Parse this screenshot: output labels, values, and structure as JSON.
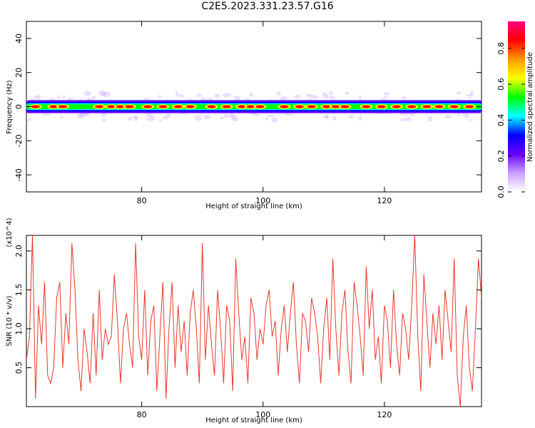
{
  "title": "C2E5.2023.331.23.57.G16",
  "colors": {
    "trace": "#e8382b",
    "axis": "#000000"
  },
  "chart_data": [
    {
      "type": "heatmap",
      "title": "C2E5.2023.331.23.57.G16",
      "xlabel": "Height of straight line (km)",
      "ylabel": "Frequency (Hz)",
      "xlim": [
        61,
        136
      ],
      "ylim": [
        -50,
        50
      ],
      "xticks": [
        80,
        100,
        120
      ],
      "yticks": [
        -40,
        -20,
        0,
        20,
        40
      ],
      "band_center_hz": 0,
      "band_halfwidth_hz": 4,
      "colorbar": {
        "label": "Normalized spectral amplitude",
        "ticks": [
          "0.0",
          "0.2",
          "0.4",
          "0.6",
          "0.8"
        ],
        "range": [
          0,
          0.95
        ],
        "colormap": [
          "#ffffff",
          "#c9a0ff",
          "#6a00ff",
          "#0000ff",
          "#00ffff",
          "#00ff00",
          "#ffff00",
          "#ff9900",
          "#ff0000",
          "#ff007f"
        ]
      },
      "hotspots_km": [
        62.5,
        65.5,
        67,
        73,
        75,
        76.5,
        78,
        81,
        83.5,
        86,
        88,
        91.5,
        94,
        96.5,
        98,
        99.5,
        103.5,
        106,
        108,
        110.5,
        112,
        113.5,
        117,
        119.5,
        122,
        124.5,
        127,
        129,
        131.5,
        134
      ]
    },
    {
      "type": "line",
      "xlabel": "Height of straight line (km)",
      "ylabel": "SNR (10 * v/v)",
      "multiplier": "(x10^4)",
      "xlim": [
        61,
        136
      ],
      "ylim": [
        0,
        2.2
      ],
      "xticks": [
        80,
        100,
        120
      ],
      "yticks": [
        "0.5",
        "1.0",
        "1.5",
        "2.0"
      ],
      "series": [
        {
          "x": [
            61.0,
            61.5,
            62.0,
            62.5,
            63.0,
            63.5,
            64.0,
            64.5,
            65.0,
            65.5,
            66.0,
            66.5,
            67.0,
            67.5,
            68.0,
            68.5,
            69.0,
            69.5,
            70.0,
            70.5,
            71.0,
            71.5,
            72.0,
            72.5,
            73.0,
            73.5,
            74.0,
            74.5,
            75.0,
            75.5,
            76.0,
            76.5,
            77.0,
            77.5,
            78.0,
            78.5,
            79.0,
            79.5,
            80.0,
            80.5,
            81.0,
            81.5,
            82.0,
            82.5,
            83.0,
            83.5,
            84.0,
            84.5,
            85.0,
            85.5,
            86.0,
            86.5,
            87.0,
            87.5,
            88.0,
            88.5,
            89.0,
            89.5,
            90.0,
            90.5,
            91.0,
            91.5,
            92.0,
            92.5,
            93.0,
            93.5,
            94.0,
            94.5,
            95.0,
            95.5,
            96.0,
            96.5,
            97.0,
            97.5,
            98.0,
            98.5,
            99.0,
            99.5,
            100.0,
            100.5,
            101.0,
            101.5,
            102.0,
            102.5,
            103.0,
            103.5,
            104.0,
            104.5,
            105.0,
            105.5,
            106.0,
            106.5,
            107.0,
            107.5,
            108.0,
            108.5,
            109.0,
            109.5,
            110.0,
            110.5,
            111.0,
            111.5,
            112.0,
            112.5,
            113.0,
            113.5,
            114.0,
            114.5,
            115.0,
            115.5,
            116.0,
            116.5,
            117.0,
            117.5,
            118.0,
            118.5,
            119.0,
            119.5,
            120.0,
            120.5,
            121.0,
            121.5,
            122.0,
            122.5,
            123.0,
            123.5,
            124.0,
            124.5,
            125.0,
            125.5,
            126.0,
            126.5,
            127.0,
            127.5,
            128.0,
            128.5,
            129.0,
            129.5,
            130.0,
            130.5,
            131.0,
            131.5,
            132.0,
            132.5,
            133.0,
            133.5,
            134.0,
            134.5,
            135.0,
            135.5,
            136.0
          ],
          "y": [
            0.6,
            0.9,
            2.2,
            0.1,
            1.3,
            0.8,
            1.6,
            0.4,
            0.3,
            0.5,
            1.4,
            1.6,
            0.5,
            1.2,
            0.8,
            2.1,
            1.5,
            0.6,
            0.2,
            1.0,
            0.7,
            0.3,
            1.2,
            0.4,
            1.5,
            0.6,
            1.0,
            0.8,
            0.9,
            1.7,
            1.1,
            0.3,
            1.0,
            1.2,
            0.8,
            0.5,
            2.1,
            0.9,
            0.6,
            1.5,
            0.4,
            1.1,
            1.3,
            0.2,
            0.9,
            1.6,
            0.1,
            1.0,
            1.6,
            0.5,
            1.3,
            0.7,
            1.1,
            0.4,
            1.2,
            1.5,
            1.0,
            0.3,
            2.1,
            0.6,
            1.3,
            0.8,
            0.4,
            1.5,
            1.0,
            0.3,
            1.3,
            1.1,
            0.2,
            1.9,
            1.2,
            0.6,
            0.9,
            0.3,
            1.4,
            1.2,
            0.6,
            1.0,
            0.8,
            1.3,
            1.5,
            0.9,
            1.1,
            0.4,
            1.0,
            1.3,
            0.7,
            1.2,
            1.6,
            0.8,
            0.3,
            1.2,
            1.1,
            0.7,
            1.4,
            1.2,
            0.9,
            0.3,
            1.0,
            1.4,
            0.6,
            1.9,
            1.0,
            0.4,
            1.2,
            1.5,
            0.7,
            0.3,
            1.6,
            1.3,
            0.9,
            0.4,
            1.8,
            1.0,
            1.5,
            0.6,
            0.9,
            0.3,
            1.3,
            1.1,
            0.5,
            1.5,
            0.8,
            0.4,
            1.2,
            1.0,
            0.6,
            1.3,
            2.2,
            0.9,
            0.2,
            1.7,
            1.1,
            0.5,
            1.2,
            0.8,
            1.3,
            0.6,
            1.5,
            1.1,
            0.7,
            1.9,
            0.4,
            0.0,
            0.9,
            1.3,
            0.5,
            0.2,
            1.0,
            1.9,
            1.4
          ]
        }
      ]
    }
  ]
}
